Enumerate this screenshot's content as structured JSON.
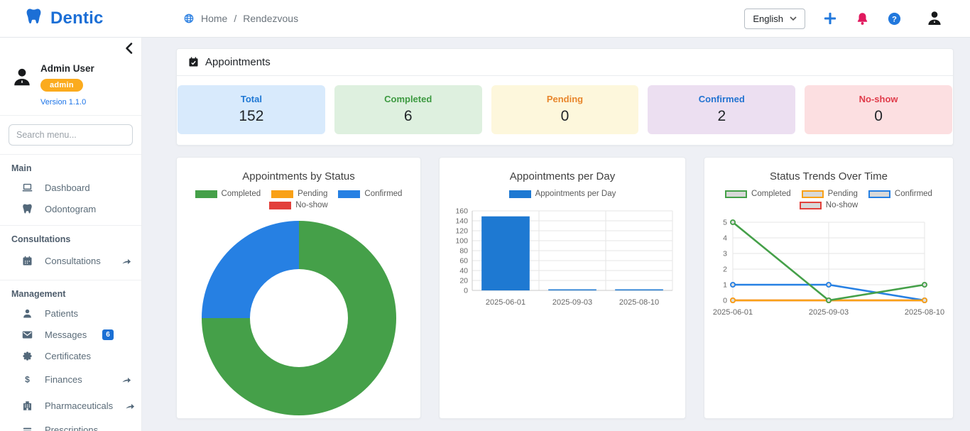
{
  "navbar": {
    "brand": "Dentic",
    "breadcrumb_home": "Home",
    "breadcrumb_sep": "/",
    "breadcrumb_current": "Rendezvous",
    "language_label": "English"
  },
  "sidebar": {
    "user_name": "Admin User",
    "user_role": "admin",
    "version": "Version 1.1.0",
    "search_placeholder": "Search menu...",
    "sections": [
      {
        "title": "Main",
        "items": [
          {
            "label": "Dashboard"
          },
          {
            "label": "Odontogram"
          }
        ]
      },
      {
        "title": "Consultations",
        "items": [
          {
            "label": "Consultations",
            "has_submenu": true
          }
        ]
      },
      {
        "title": "Management",
        "items": [
          {
            "label": "Patients"
          },
          {
            "label": "Messages",
            "badge": "6"
          },
          {
            "label": "Certificates"
          },
          {
            "label": "Finances",
            "has_submenu": true
          },
          {
            "label": "Pharmaceuticals",
            "has_submenu": true
          },
          {
            "label": "Prescriptions"
          }
        ]
      }
    ]
  },
  "main": {
    "panel_title": "Appointments",
    "stats": [
      {
        "label": "Total",
        "value": "152",
        "bg": "#d8eafc",
        "fg": "#1f78d4"
      },
      {
        "label": "Completed",
        "value": "6",
        "bg": "#def0df",
        "fg": "#3d9a41"
      },
      {
        "label": "Pending",
        "value": "0",
        "bg": "#fdf7dc",
        "fg": "#e8862c"
      },
      {
        "label": "Confirmed",
        "value": "2",
        "bg": "#ecdff1",
        "fg": "#2273d1"
      },
      {
        "label": "No-show",
        "value": "0",
        "bg": "#fcdfe1",
        "fg": "#e03b4a"
      }
    ]
  },
  "chart_data": [
    {
      "type": "pie",
      "subtype": "doughnut",
      "title": "Appointments by Status",
      "labels": [
        "Completed",
        "Pending",
        "Confirmed",
        "No-show"
      ],
      "values": [
        6,
        0,
        2,
        0
      ],
      "colors": [
        "#45a049",
        "#f9a117",
        "#2680e3",
        "#e2403b"
      ],
      "legend_position": "top",
      "cutout_ratio": 0.5
    },
    {
      "type": "bar",
      "title": "Appointments per Day",
      "categories": [
        "2025-06-01",
        "2025-09-03",
        "2025-08-10"
      ],
      "series": [
        {
          "name": "Appointments per Day",
          "values": [
            149,
            2,
            1
          ],
          "color": "#1e79d2"
        }
      ],
      "ylim": [
        0,
        160
      ],
      "ytick_step": 20,
      "grid": true,
      "legend_position": "top"
    },
    {
      "type": "line",
      "title": "Status Trends Over Time",
      "categories": [
        "2025-06-01",
        "2025-09-03",
        "2025-08-10"
      ],
      "series": [
        {
          "name": "Completed",
          "values": [
            5,
            0,
            1
          ],
          "color": "#45a049"
        },
        {
          "name": "Pending",
          "values": [
            0,
            0,
            0
          ],
          "color": "#f9a117"
        },
        {
          "name": "Confirmed",
          "values": [
            1,
            1,
            0
          ],
          "color": "#2680e3"
        },
        {
          "name": "No-show",
          "values": [
            0,
            0,
            0
          ],
          "color": "#e2403b"
        }
      ],
      "ylim": [
        0,
        5
      ],
      "ytick_step": 1,
      "grid": true,
      "legend_position": "top"
    }
  ]
}
